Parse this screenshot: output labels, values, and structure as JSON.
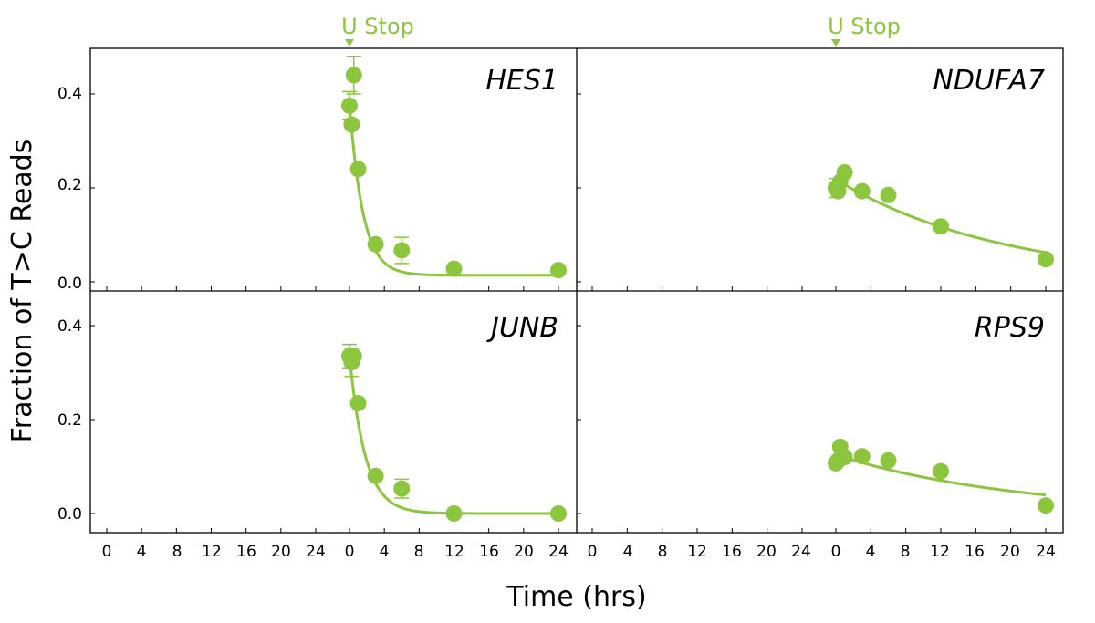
{
  "colors": {
    "series": "#8cc63f",
    "axis": "#000000"
  },
  "figure": {
    "x_axis_title": "Time (hrs)",
    "y_axis_title": "Fraction of T>C Reads",
    "x_tick_labels": [
      "0",
      "4",
      "8",
      "12",
      "16",
      "20",
      "24",
      "0",
      "4",
      "8",
      "12",
      "16",
      "20",
      "24"
    ],
    "y_tick_labels": [
      "0.0",
      "0.2",
      "0.4"
    ],
    "marker_label": "U Stop"
  },
  "chart_data": [
    {
      "type": "scatter",
      "title": "HES1",
      "xlabel": "Time (hrs)",
      "ylabel": "Fraction of T>C Reads",
      "xlim": [
        -24,
        24
      ],
      "ylim": [
        -0.02,
        0.5
      ],
      "marker": {
        "label": "U Stop",
        "x": 0
      },
      "points": [
        {
          "x": 0,
          "y": 0.375,
          "err": 0.03
        },
        {
          "x": 0.25,
          "y": 0.335,
          "err": 0.0
        },
        {
          "x": 0.5,
          "y": 0.44,
          "err": 0.04
        },
        {
          "x": 1,
          "y": 0.24,
          "err": 0.0
        },
        {
          "x": 3,
          "y": 0.08,
          "err": 0.0
        },
        {
          "x": 6,
          "y": 0.067,
          "err": 0.028
        },
        {
          "x": 12,
          "y": 0.028,
          "err": 0.0
        },
        {
          "x": 24,
          "y": 0.025,
          "err": 0.0
        }
      ],
      "fit": {
        "plateau": 0.014,
        "amplitude": 0.366,
        "k": 0.65
      }
    },
    {
      "type": "scatter",
      "title": "NDUFA7",
      "xlabel": "Time (hrs)",
      "ylabel": "Fraction of T>C Reads",
      "xlim": [
        -24,
        24
      ],
      "ylim": [
        -0.02,
        0.5
      ],
      "marker": {
        "label": "U Stop",
        "x": 0
      },
      "points": [
        {
          "x": 0,
          "y": 0.2,
          "err": 0.02
        },
        {
          "x": 0.25,
          "y": 0.193,
          "err": 0.0
        },
        {
          "x": 0.5,
          "y": 0.213,
          "err": 0.0
        },
        {
          "x": 1,
          "y": 0.233,
          "err": 0.0
        },
        {
          "x": 3,
          "y": 0.193,
          "err": 0.0
        },
        {
          "x": 6,
          "y": 0.185,
          "err": 0.0
        },
        {
          "x": 12,
          "y": 0.118,
          "err": 0.0
        },
        {
          "x": 24,
          "y": 0.048,
          "err": 0.0
        }
      ],
      "fit": {
        "plateau": 0.0,
        "amplitude": 0.218,
        "k": 0.052
      }
    },
    {
      "type": "scatter",
      "title": "JUNB",
      "xlabel": "Time (hrs)",
      "ylabel": "Fraction of T>C Reads",
      "xlim": [
        -24,
        24
      ],
      "ylim": [
        -0.04,
        0.48
      ],
      "marker": {
        "label": "U Stop",
        "x": 0
      },
      "points": [
        {
          "x": 0,
          "y": 0.335,
          "err": 0.025
        },
        {
          "x": 0.25,
          "y": 0.322,
          "err": 0.03
        },
        {
          "x": 0.5,
          "y": 0.335,
          "err": 0.0
        },
        {
          "x": 1,
          "y": 0.235,
          "err": 0.0
        },
        {
          "x": 3,
          "y": 0.08,
          "err": 0.0
        },
        {
          "x": 6,
          "y": 0.053,
          "err": 0.02
        },
        {
          "x": 12,
          "y": 0.0,
          "err": 0.0
        },
        {
          "x": 24,
          "y": 0.0,
          "err": 0.0
        }
      ],
      "fit": {
        "plateau": 0.0,
        "amplitude": 0.335,
        "k": 0.55
      }
    },
    {
      "type": "scatter",
      "title": "RPS9",
      "xlabel": "Time (hrs)",
      "ylabel": "Fraction of T>C Reads",
      "xlim": [
        -24,
        24
      ],
      "ylim": [
        -0.04,
        0.48
      ],
      "marker": {
        "label": "U Stop",
        "x": 0
      },
      "points": [
        {
          "x": 0,
          "y": 0.107,
          "err": 0.0
        },
        {
          "x": 0.25,
          "y": 0.113,
          "err": 0.0
        },
        {
          "x": 0.5,
          "y": 0.142,
          "err": 0.0
        },
        {
          "x": 1,
          "y": 0.12,
          "err": 0.0
        },
        {
          "x": 3,
          "y": 0.122,
          "err": 0.0
        },
        {
          "x": 6,
          "y": 0.113,
          "err": 0.0
        },
        {
          "x": 12,
          "y": 0.09,
          "err": 0.0
        },
        {
          "x": 24,
          "y": 0.017,
          "err": 0.0
        }
      ],
      "fit": {
        "plateau": 0.0,
        "amplitude": 0.125,
        "k": 0.048
      }
    }
  ]
}
